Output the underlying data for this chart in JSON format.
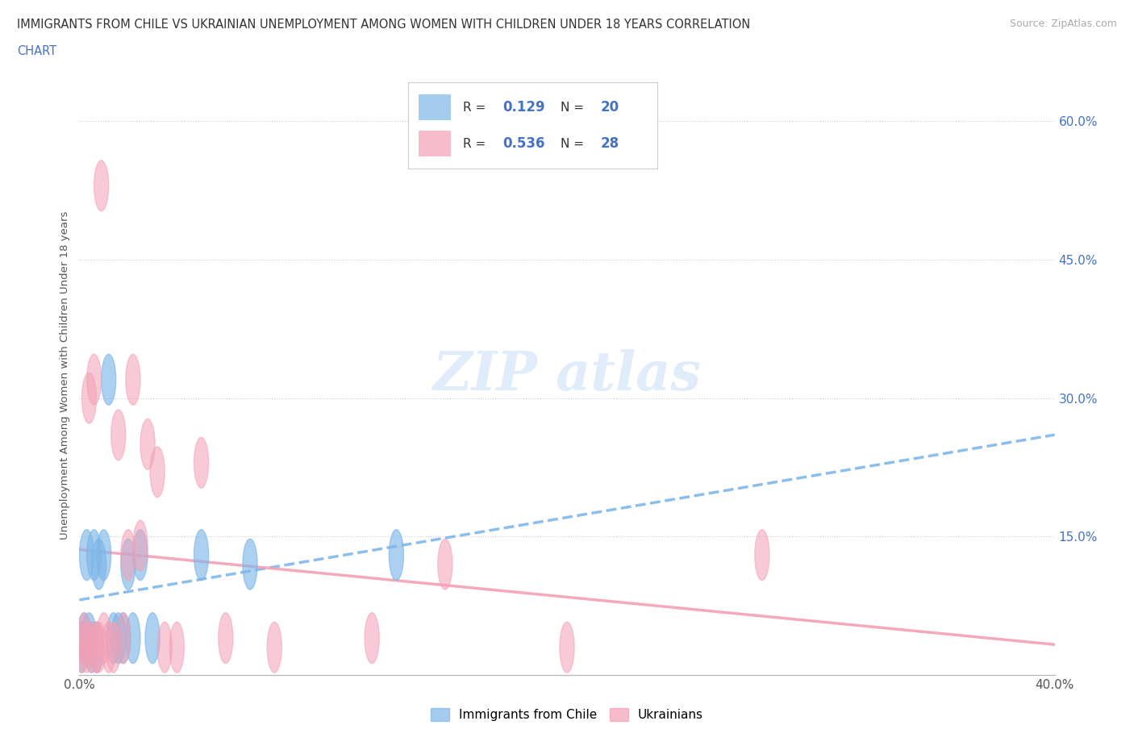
{
  "title_line1": "IMMIGRANTS FROM CHILE VS UKRAINIAN UNEMPLOYMENT AMONG WOMEN WITH CHILDREN UNDER 18 YEARS CORRELATION",
  "title_line2": "CHART",
  "source": "Source: ZipAtlas.com",
  "ylabel": "Unemployment Among Women with Children Under 18 years",
  "xlim": [
    0.0,
    0.4
  ],
  "ylim": [
    0.0,
    0.65
  ],
  "xticks": [
    0.0,
    0.05,
    0.1,
    0.15,
    0.2,
    0.25,
    0.3,
    0.35,
    0.4
  ],
  "xtick_labels": [
    "0.0%",
    "",
    "",
    "",
    "",
    "",
    "",
    "",
    "40.0%"
  ],
  "ytick_labels": [
    "15.0%",
    "30.0%",
    "45.0%",
    "60.0%"
  ],
  "yticks": [
    0.15,
    0.3,
    0.45,
    0.6
  ],
  "chile_color": "#7eb7e8",
  "ukraine_color": "#f4a0b5",
  "chile_R": "0.129",
  "chile_N": "20",
  "ukraine_R": "0.536",
  "ukraine_N": "28",
  "background_color": "#ffffff",
  "chile_x": [
    0.001,
    0.002,
    0.003,
    0.004,
    0.005,
    0.006,
    0.007,
    0.008,
    0.01,
    0.012,
    0.014,
    0.016,
    0.018,
    0.02,
    0.022,
    0.025,
    0.03,
    0.05,
    0.07,
    0.13
  ],
  "chile_y": [
    0.03,
    0.04,
    0.13,
    0.04,
    0.03,
    0.13,
    0.03,
    0.12,
    0.13,
    0.32,
    0.04,
    0.04,
    0.04,
    0.12,
    0.04,
    0.13,
    0.04,
    0.13,
    0.12,
    0.13
  ],
  "ukraine_x": [
    0.001,
    0.002,
    0.003,
    0.004,
    0.005,
    0.006,
    0.007,
    0.008,
    0.009,
    0.01,
    0.012,
    0.014,
    0.016,
    0.018,
    0.02,
    0.022,
    0.025,
    0.028,
    0.032,
    0.035,
    0.04,
    0.05,
    0.06,
    0.08,
    0.12,
    0.15,
    0.2,
    0.28
  ],
  "ukraine_y": [
    0.03,
    0.04,
    0.03,
    0.3,
    0.03,
    0.32,
    0.03,
    0.03,
    0.53,
    0.04,
    0.03,
    0.03,
    0.26,
    0.04,
    0.13,
    0.32,
    0.14,
    0.25,
    0.22,
    0.03,
    0.03,
    0.23,
    0.04,
    0.03,
    0.04,
    0.12,
    0.03,
    0.13
  ]
}
